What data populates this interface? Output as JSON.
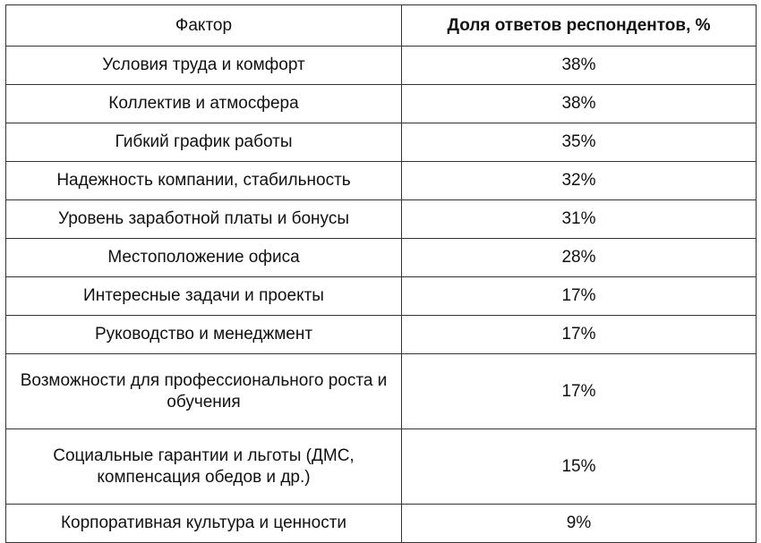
{
  "table": {
    "headers": [
      "Фактор",
      "Доля ответов респондентов, %"
    ],
    "rows": [
      {
        "factor": "Условия труда и комфорт",
        "share": "38%"
      },
      {
        "factor": "Коллектив и атмосфера",
        "share": "38%"
      },
      {
        "factor": "Гибкий график работы",
        "share": "35%"
      },
      {
        "factor": "Надежность компании, стабильность",
        "share": "32%"
      },
      {
        "factor": "Уровень заработной платы и бонусы",
        "share": "31%"
      },
      {
        "factor": "Местоположение офиса",
        "share": "28%"
      },
      {
        "factor": "Интересные задачи и проекты",
        "share": "17%"
      },
      {
        "factor": "Руководство и менеджмент",
        "share": "17%"
      },
      {
        "factor": "Возможности для профессионального роста и обучения",
        "share": "17%"
      },
      {
        "factor": "Социальные гарантии и льготы (ДМС, компенсация обедов и др.)",
        "share": "15%"
      },
      {
        "factor": "Корпоративная культура и ценности",
        "share": "9%"
      }
    ]
  }
}
